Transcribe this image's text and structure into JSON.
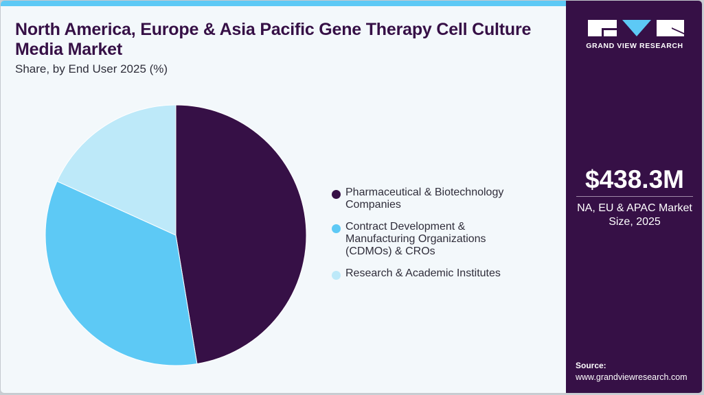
{
  "header": {
    "title": "North America, Europe & Asia Pacific Gene Therapy Cell Culture Media Market",
    "subtitle": "Share, by End User 2025 (%)"
  },
  "brand": {
    "name": "GRAND VIEW RESEARCH",
    "colors": {
      "dark": "#361046",
      "accent": "#5dc9f5",
      "light": "#bde9f9",
      "background": "#f3f8fb"
    }
  },
  "sidebar": {
    "market_size_value": "$438.3M",
    "market_size_label": "NA, EU & APAC Market Size, 2025",
    "source_label": "Source:",
    "source_url": "www.grandviewresearch.com"
  },
  "chart_data": {
    "type": "pie",
    "title": "North America, Europe & Asia Pacific Gene Therapy Cell Culture Media Market",
    "subtitle": "Share, by End User 2025 (%)",
    "categories": [
      "Pharmaceutical & Biotechnology Companies",
      "Contract Development & Manufacturing Organizations (CDMOs) & CROs",
      "Research & Academic Institutes"
    ],
    "values": [
      47.4,
      34.4,
      18.2
    ],
    "colors": [
      "#361046",
      "#5dc9f5",
      "#bde9f9"
    ],
    "start_angle_deg": 0,
    "direction": "clockwise",
    "legend_position": "right",
    "data_labels": false
  },
  "legend": {
    "items": [
      {
        "label": "Pharmaceutical & Biotechnology Companies",
        "color": "#361046"
      },
      {
        "label": "Contract Development & Manufacturing Organizations (CDMOs) & CROs",
        "color": "#5dc9f5"
      },
      {
        "label": "Research & Academic Institutes",
        "color": "#bde9f9"
      }
    ]
  }
}
